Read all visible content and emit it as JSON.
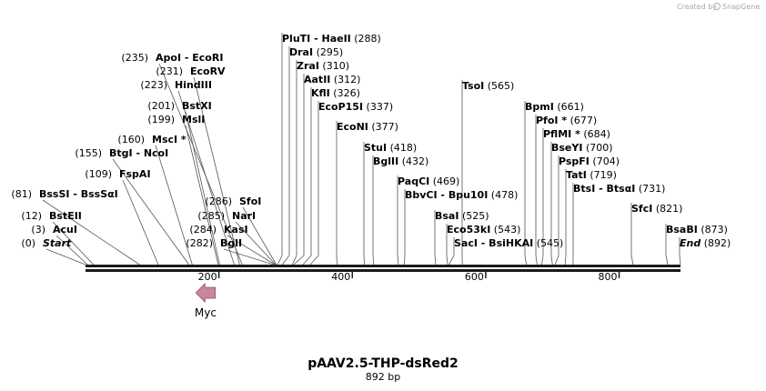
{
  "credit": {
    "prefix": "Created by",
    "brand": "SnapGene"
  },
  "map": {
    "title": "pAAV2.5-THP-dsRed2",
    "length_label": "892 bp",
    "sequence_length": 892,
    "colors": {
      "backbone": "#1a1a1a",
      "feature_fill": "#c9869f",
      "feature_stroke": "#8a4a66",
      "line": "#555555"
    },
    "ticks": [
      {
        "label": "200",
        "value": 200
      },
      {
        "label": "400",
        "value": 400
      },
      {
        "label": "600",
        "value": 600
      },
      {
        "label": "800",
        "value": 800
      }
    ],
    "features": [
      {
        "name": "Myc",
        "start": 160,
        "end": 189,
        "direction": "reverse"
      }
    ],
    "sites": [
      {
        "pos_text": "(0)",
        "name": "Start",
        "style": "italic",
        "site": 0
      },
      {
        "pos_text": "(3)",
        "name": "AcuI",
        "site": 3
      },
      {
        "pos_text": "(12)",
        "name": "BstEII",
        "site": 12
      },
      {
        "pos_text": "(81)",
        "name": "BssSI  -  BssSαI",
        "site": 81
      },
      {
        "pos_text": "(109)",
        "name": "FspAI",
        "site": 109
      },
      {
        "pos_text": "(155)",
        "name": "BtgI  -  NcoI",
        "site": 155
      },
      {
        "pos_text": "(160)",
        "name": "MscI *",
        "site": 160
      },
      {
        "pos_text": "(199)",
        "name": "MslI",
        "site": 199
      },
      {
        "pos_text": "(201)",
        "name": "BstXI",
        "site": 201
      },
      {
        "pos_text": "(223)",
        "name": "HindIII",
        "site": 223
      },
      {
        "pos_text": "(231)",
        "name": "EcoRV",
        "site": 231
      },
      {
        "pos_text": "(235)",
        "name": "ApoI  -  EcoRI",
        "site": 235
      },
      {
        "pos_text": "(282)",
        "name": "BglI",
        "site": 282
      },
      {
        "pos_text": "(284)",
        "name": "KasI",
        "site": 284
      },
      {
        "pos_text": "(285)",
        "name": "NarI",
        "site": 285
      },
      {
        "pos_text": "(286)",
        "name": "SfoI",
        "site": 286
      },
      {
        "name": "PluTI  -  HaeII",
        "pos_text": "(288)",
        "site": 288
      },
      {
        "name": "DraI",
        "pos_text": "(295)",
        "site": 295
      },
      {
        "name": "ZraI",
        "pos_text": "(310)",
        "site": 310
      },
      {
        "name": "AatII",
        "pos_text": "(312)",
        "site": 312
      },
      {
        "name": "KflI",
        "pos_text": "(326)",
        "site": 326
      },
      {
        "name": "EcoP15I",
        "pos_text": "(337)",
        "site": 337
      },
      {
        "name": "EcoNI",
        "pos_text": "(377)",
        "site": 377
      },
      {
        "name": "StuI",
        "pos_text": "(418)",
        "site": 418
      },
      {
        "name": "BglII",
        "pos_text": "(432)",
        "site": 432
      },
      {
        "name": "PaqCI",
        "pos_text": "(469)",
        "site": 469
      },
      {
        "name": "BbvCI  -  Bpu10I",
        "pos_text": "(478)",
        "site": 478
      },
      {
        "name": "BsaI",
        "pos_text": "(525)",
        "site": 525
      },
      {
        "name": "Eco53kI",
        "pos_text": "(543)",
        "site": 543
      },
      {
        "name": "SacI  -  BsiHKAI",
        "pos_text": "(545)",
        "site": 545
      },
      {
        "name": "TsoI",
        "pos_text": "(565)",
        "site": 565
      },
      {
        "name": "BpmI",
        "pos_text": "(661)",
        "site": 661
      },
      {
        "name": "PfoI *",
        "pos_text": "(677)",
        "site": 677
      },
      {
        "name": "PflMI *",
        "pos_text": "(684)",
        "site": 684
      },
      {
        "name": "BseYI",
        "pos_text": "(700)",
        "site": 700
      },
      {
        "name": "PspFI",
        "pos_text": "(704)",
        "site": 704
      },
      {
        "name": "TatI",
        "pos_text": "(719)",
        "site": 719
      },
      {
        "name": "BtsI  -  BtsαI",
        "pos_text": "(731)",
        "site": 731
      },
      {
        "name": "SfcI",
        "pos_text": "(821)",
        "site": 821
      },
      {
        "name": "BsaBI",
        "pos_text": "(873)",
        "site": 873
      },
      {
        "name": "End",
        "style": "italic",
        "pos_text": "(892)",
        "site": 892
      }
    ]
  }
}
